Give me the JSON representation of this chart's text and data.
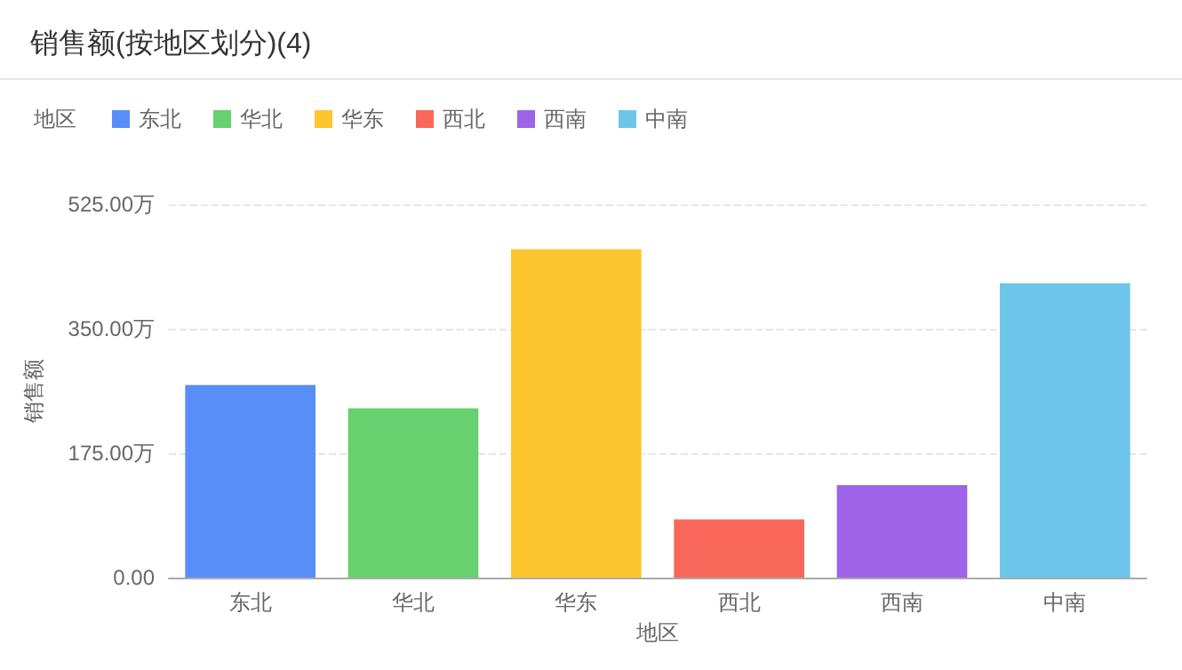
{
  "chart_data": {
    "type": "bar",
    "title": "销售额(按地区划分)(4)",
    "legend_title": "地区",
    "xlabel": "地区",
    "ylabel": "销售额",
    "categories": [
      "东北",
      "华北",
      "华东",
      "西北",
      "西南",
      "中南"
    ],
    "series": [
      {
        "name": "东北",
        "color": "#598ef9",
        "values": [
          271,
          null,
          null,
          null,
          null,
          null
        ]
      },
      {
        "name": "华北",
        "color": "#67d06f",
        "values": [
          null,
          238,
          null,
          null,
          null,
          null
        ]
      },
      {
        "name": "华东",
        "color": "#fdc52e",
        "values": [
          null,
          null,
          462,
          null,
          null,
          null
        ]
      },
      {
        "name": "西北",
        "color": "#f8675a",
        "values": [
          null,
          null,
          null,
          82,
          null,
          null
        ]
      },
      {
        "name": "西南",
        "color": "#9e63e8",
        "values": [
          null,
          null,
          null,
          null,
          130,
          null
        ]
      },
      {
        "name": "中南",
        "color": "#6dc6ea",
        "values": [
          null,
          null,
          null,
          null,
          null,
          414
        ]
      }
    ],
    "ylim": [
      0,
      525
    ],
    "yticks": [
      {
        "value": 0,
        "label": "0.00"
      },
      {
        "value": 175,
        "label": "175.00万"
      },
      {
        "value": 350,
        "label": "350.00万"
      },
      {
        "value": 525,
        "label": "525.00万"
      }
    ],
    "grid": "y",
    "legend": "top left"
  }
}
